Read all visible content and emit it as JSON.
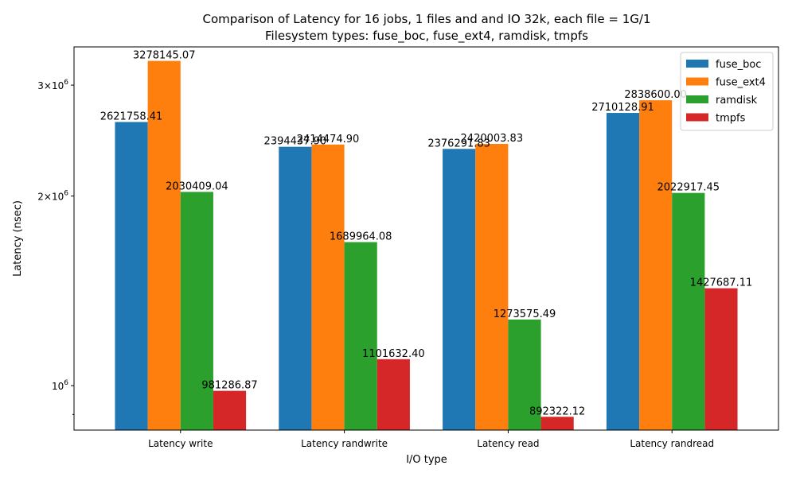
{
  "chart_data": {
    "type": "bar",
    "title_lines": [
      "Comparison of Latency for 16 jobs, 1 files and  and IO 32k, each file = 1G/1",
      "Filesystem types: fuse_boc, fuse_ext4, ramdisk, tmpfs"
    ],
    "xlabel": "I/O type",
    "ylabel": "Latency (nsec)",
    "yscale": "log",
    "ylim": [
      850000,
      3450000
    ],
    "yticks": [
      {
        "value": 1000000,
        "mantissa": "",
        "exponent": "6"
      },
      {
        "value": 2000000,
        "mantissa": "2",
        "exponent": "6"
      },
      {
        "value": 3000000,
        "mantissa": "3",
        "exponent": "6"
      }
    ],
    "legend_position": "upper-right",
    "grid": false,
    "categories": [
      "Latency write",
      "Latency randwrite",
      "Latency read",
      "Latency randread"
    ],
    "series": [
      {
        "name": "fuse_boc",
        "color": "#1f77b4",
        "values": [
          2621758.41,
          2394437.9,
          2376291.83,
          2710128.91
        ],
        "labels": [
          "2621758.41",
          "2394437.90",
          "2376291.83",
          "2710128.91"
        ]
      },
      {
        "name": "fuse_ext4",
        "color": "#ff7f0e",
        "values": [
          3278145.07,
          2414474.9,
          2420003.83,
          2838600.0
        ],
        "labels": [
          "3278145.07",
          "2414474.90",
          "2420003.83",
          "2838600.00"
        ]
      },
      {
        "name": "ramdisk",
        "color": "#2ca02c",
        "values": [
          2030409.04,
          1689964.08,
          1273575.49,
          2022917.45
        ],
        "labels": [
          "2030409.04",
          "1689964.08",
          "1273575.49",
          "2022917.45"
        ]
      },
      {
        "name": "tmpfs",
        "color": "#d62728",
        "values": [
          981286.87,
          1101632.4,
          892322.12,
          1427687.11
        ],
        "labels": [
          "981286.87",
          "1101632.40",
          "892322.12",
          "1427687.11"
        ]
      }
    ]
  }
}
